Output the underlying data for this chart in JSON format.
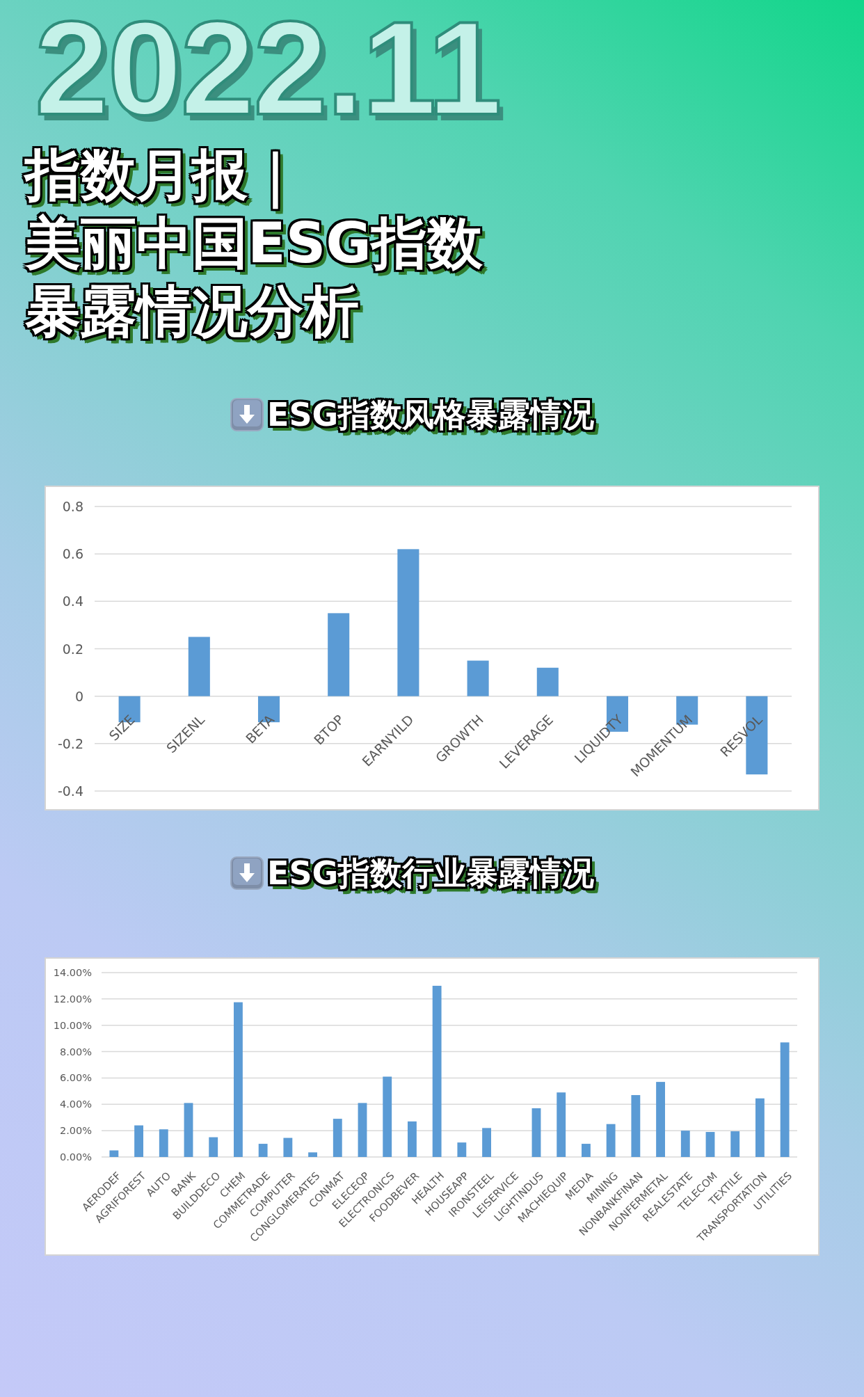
{
  "chart_data": [
    {
      "type": "other",
      "annotations": [
        "2022.11"
      ],
      "title": "指数月报｜",
      "subtitle": "美丽中国ESG指数暴露情况分析"
    },
    {
      "type": "bar",
      "title": "ESG指数风格暴露情况",
      "categories": [
        "SIZE",
        "SIZENL",
        "BETA",
        "BTOP",
        "EARNYILD",
        "GROWTH",
        "LEVERAGE",
        "LIQUIDTY",
        "MOMENTUM",
        "RESVOL"
      ],
      "values": [
        -0.11,
        0.25,
        -0.11,
        0.35,
        0.62,
        0.15,
        0.12,
        -0.15,
        -0.12,
        -0.33
      ],
      "color": "#5b9bd5",
      "ylim": [
        -0.4,
        0.8
      ],
      "yticks": [
        -0.4,
        -0.2,
        0,
        0.2,
        0.4,
        0.6,
        0.8
      ],
      "grid": "y"
    },
    {
      "type": "bar",
      "title": "ESG指数行业暴露情况",
      "categories": [
        "AERODEF",
        "AGRIFOREST",
        "AUTO",
        "BANK",
        "BUILDDECO",
        "CHEM",
        "COMMETRADE",
        "COMPUTER",
        "CONGLOMERATES",
        "CONMAT",
        "ELECEQP",
        "ELECTRONICS",
        "FOODBEVER",
        "HEALTH",
        "HOUSEAPP",
        "IRONSTEEL",
        "LEISERVICE",
        "LIGHTINDUS",
        "MACHIEQUIP",
        "MEDIA",
        "MINING",
        "NONBANKFINAN",
        "NONFERMETAL",
        "REALESTATE",
        "TELECOM",
        "TEXTILE",
        "TRANSPORTATION",
        "UTILITIES"
      ],
      "values": [
        0.5,
        2.4,
        2.1,
        4.1,
        1.5,
        11.75,
        1.0,
        1.45,
        0.35,
        2.9,
        4.1,
        6.1,
        2.7,
        13.0,
        1.1,
        2.2,
        0,
        3.7,
        4.9,
        1.0,
        2.5,
        4.7,
        5.7,
        2.0,
        1.9,
        1.95,
        4.45,
        8.7
      ],
      "color": "#5b9bd5",
      "ylim": [
        0,
        14
      ],
      "yticks": [
        {
          "value": 0,
          "label": "0.00%"
        },
        {
          "value": 2,
          "label": "2.00%"
        },
        {
          "value": 4,
          "label": "4.00%"
        },
        {
          "value": 6,
          "label": "6.00%"
        },
        {
          "value": 8,
          "label": "8.00%"
        },
        {
          "value": 10,
          "label": "10.00%"
        },
        {
          "value": 12,
          "label": "12.00%"
        },
        {
          "value": 14,
          "label": "14.00%"
        }
      ],
      "grid": "y"
    }
  ]
}
